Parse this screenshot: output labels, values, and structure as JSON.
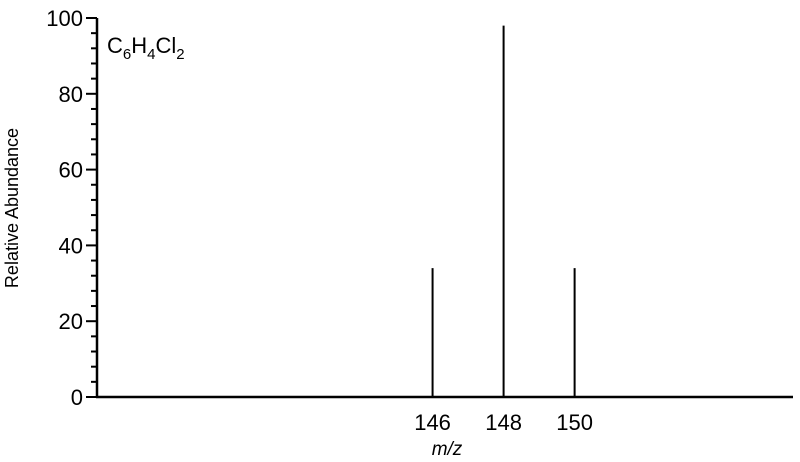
{
  "chart_data": {
    "type": "bar",
    "title": "",
    "compound": {
      "element1": "C",
      "sub1": "6",
      "element2": "H",
      "sub2": "4",
      "element3": "Cl",
      "sub3": "2"
    },
    "xlabel": "m/z",
    "ylabel": "Relative Abundance",
    "xticks": [
      146,
      148,
      150
    ],
    "yticks": [
      0,
      20,
      40,
      60,
      80,
      100
    ],
    "ylim": [
      0,
      100
    ],
    "xlim": [
      136.55,
      156.15
    ],
    "grid": false,
    "legend": "none",
    "peaks": [
      {
        "mz": 146,
        "abundance": 34
      },
      {
        "mz": 148,
        "abundance": 98
      },
      {
        "mz": 150,
        "abundance": 34
      }
    ],
    "colors": {
      "axis": "#000000",
      "bar": "#000000"
    }
  }
}
